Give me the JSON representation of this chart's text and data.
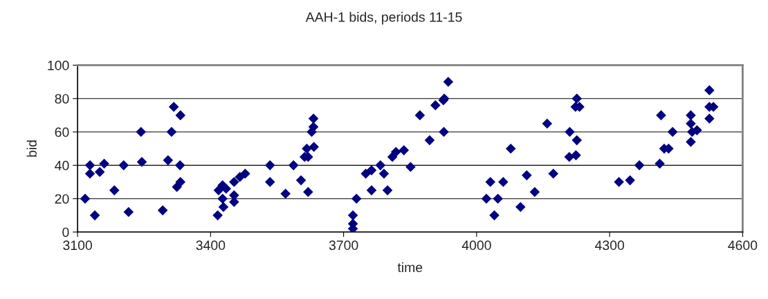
{
  "chart_data": {
    "type": "scatter",
    "title": "AAH-1 bids, periods 11-15",
    "xlabel": "time",
    "ylabel": "bid",
    "marker": "diamond",
    "grid": "y",
    "xlim": [
      3100,
      4600
    ],
    "xticks": [
      3100,
      3400,
      3700,
      4000,
      4300,
      4600
    ],
    "ylim": [
      0,
      100
    ],
    "yticks": [
      0,
      20,
      40,
      60,
      80,
      100
    ],
    "series": [
      {
        "color": "#000080",
        "x": [
          3117,
          3128,
          3128,
          3139,
          3150,
          3160,
          3183,
          3204,
          3215,
          3243,
          3245,
          3292,
          3304,
          3312,
          3317,
          3332,
          3331,
          3324,
          3332,
          3416,
          3418,
          3427,
          3427,
          3435,
          3429,
          3453,
          3453,
          3453,
          3466,
          3478,
          3534,
          3534,
          3569,
          3587,
          3604,
          3612,
          3620,
          3620,
          3617,
          3633,
          3628,
          3632,
          3632,
          3721,
          3721,
          3721,
          3729,
          3750,
          3763,
          3763,
          3783,
          3791,
          3799,
          3810,
          3818,
          3836,
          3851,
          3872,
          3894,
          3907,
          3925,
          3927,
          3926,
          3936,
          4022,
          4031,
          4040,
          4048,
          4060,
          4077,
          4099,
          4113,
          4131,
          4159,
          4173,
          4210,
          4226,
          4209,
          4224,
          4226,
          4223,
          4232,
          4321,
          4346,
          4367,
          4413,
          4416,
          4423,
          4433,
          4442,
          4483,
          4483,
          4483,
          4486,
          4497,
          4525,
          4525,
          4534,
          4525
        ],
        "values": [
          20,
          40,
          35,
          10,
          36,
          41,
          25,
          40,
          12,
          60,
          42,
          13,
          43,
          60,
          75,
          70,
          40,
          27,
          30,
          10,
          25,
          28,
          20,
          26,
          15,
          30,
          22,
          18,
          33,
          35,
          40,
          30,
          23,
          40,
          31,
          45,
          24,
          45,
          50,
          51,
          60,
          63,
          68,
          2,
          5,
          10,
          20,
          35,
          37,
          25,
          40,
          35,
          25,
          45,
          48,
          49,
          39,
          70,
          55,
          76,
          79,
          80,
          60,
          90,
          20,
          30,
          10,
          20,
          30,
          50,
          15,
          34,
          24,
          65,
          35,
          60,
          55,
          45,
          46,
          80,
          75,
          75,
          30,
          31,
          40,
          41,
          70,
          50,
          50,
          60,
          70,
          65,
          54,
          60,
          61,
          85,
          75,
          75,
          68
        ]
      }
    ]
  }
}
